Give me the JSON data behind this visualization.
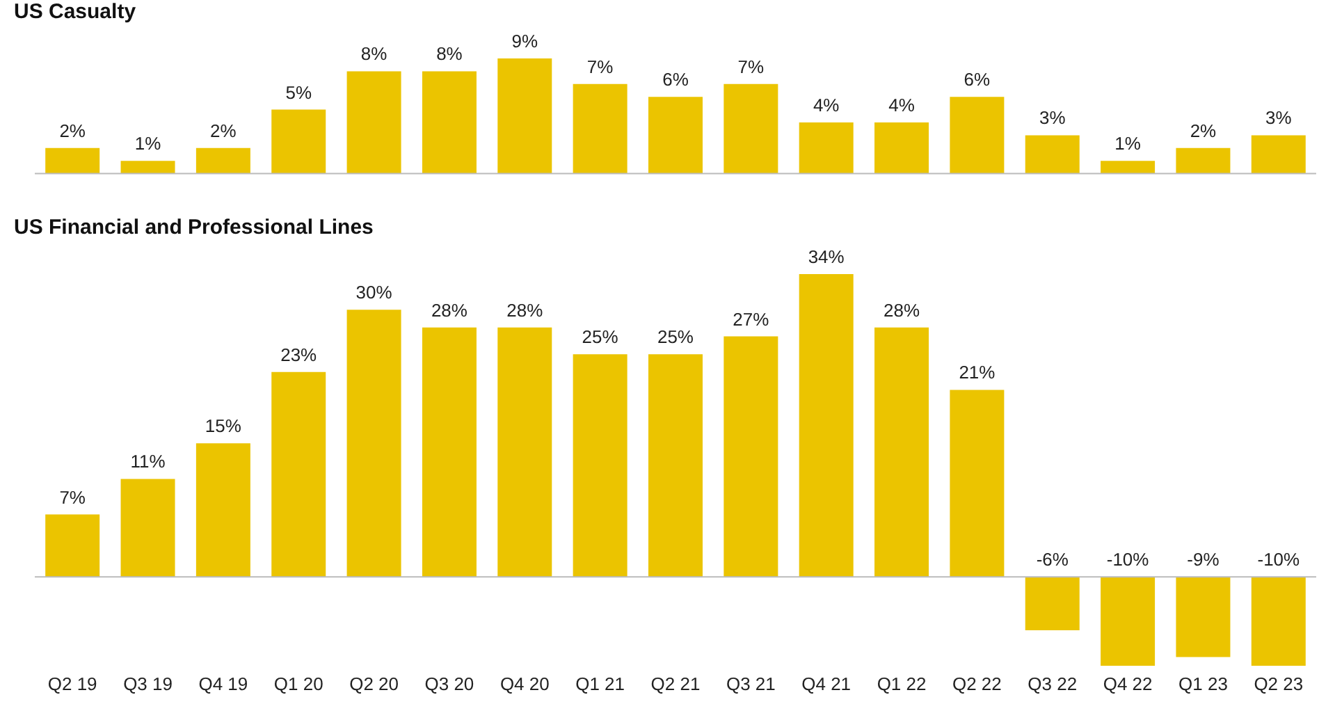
{
  "chart_data": [
    {
      "type": "bar",
      "title": "US Casualty",
      "categories": [
        null,
        null,
        null,
        null,
        null,
        null,
        null,
        null,
        null,
        null,
        null,
        null,
        null,
        null,
        null,
        null,
        null
      ],
      "values": [
        2,
        1,
        2,
        5,
        8,
        8,
        9,
        7,
        6,
        7,
        4,
        4,
        6,
        3,
        1,
        2,
        3
      ],
      "value_labels": [
        "2%",
        "1%",
        "2%",
        "5%",
        "8%",
        "8%",
        "9%",
        "7%",
        "6%",
        "7%",
        "4%",
        "4%",
        "6%",
        "3%",
        "1%",
        "2%",
        "3%"
      ],
      "color": "#ebc400",
      "tick_labels": false
    },
    {
      "type": "bar",
      "title": "US Financial and Professional Lines",
      "categories": [
        "Q2 19",
        "Q3 19",
        "Q4 19",
        "Q1 20",
        "Q2 20",
        "Q3 20",
        "Q4 20",
        "Q1 21",
        "Q2 21",
        "Q3 21",
        "Q4 21",
        "Q1 22",
        "Q2 22",
        "Q3 22",
        "Q4 22",
        "Q1 23",
        "Q2 23"
      ],
      "values": [
        7,
        11,
        15,
        23,
        30,
        28,
        28,
        25,
        25,
        27,
        34,
        28,
        21,
        -6,
        -10,
        -9,
        -10
      ],
      "value_labels": [
        "7%",
        "11%",
        "15%",
        "23%",
        "30%",
        "28%",
        "28%",
        "25%",
        "25%",
        "27%",
        "34%",
        "28%",
        "21%",
        "-6%",
        "-10%",
        "-9%",
        "-10%"
      ],
      "color": "#ebc400",
      "tick_labels": "x"
    }
  ]
}
